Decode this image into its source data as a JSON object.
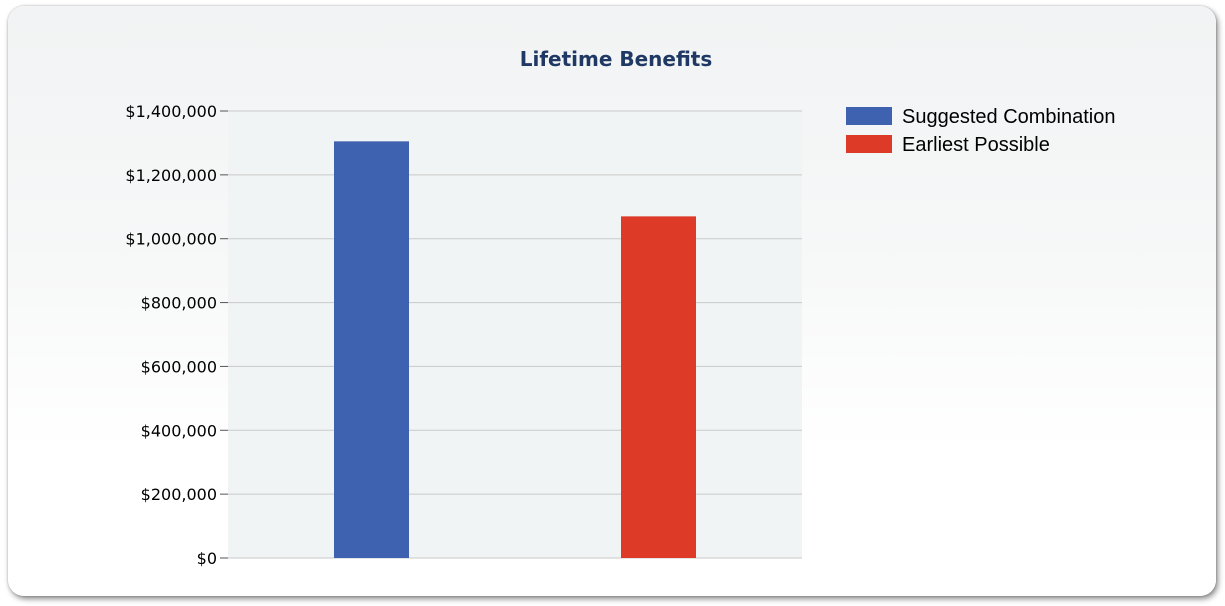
{
  "chart_data": {
    "type": "bar",
    "title": "Lifetime Benefits",
    "xlabel": "",
    "ylabel": "",
    "ylim": [
      0,
      1400000
    ],
    "y_ticks": [
      0,
      200000,
      400000,
      600000,
      800000,
      1000000,
      1200000,
      1400000
    ],
    "y_tick_labels": [
      "$0",
      "$200,000",
      "$400,000",
      "$600,000",
      "$800,000",
      "$1,000,000",
      "$1,200,000",
      "$1,400,000"
    ],
    "grid": true,
    "legend_position": "top-right",
    "series": [
      {
        "name": "Suggested Combination",
        "value": 1305000,
        "color": "#3e62b0"
      },
      {
        "name": "Earliest Possible",
        "value": 1070000,
        "color": "#dd3a27"
      }
    ]
  }
}
